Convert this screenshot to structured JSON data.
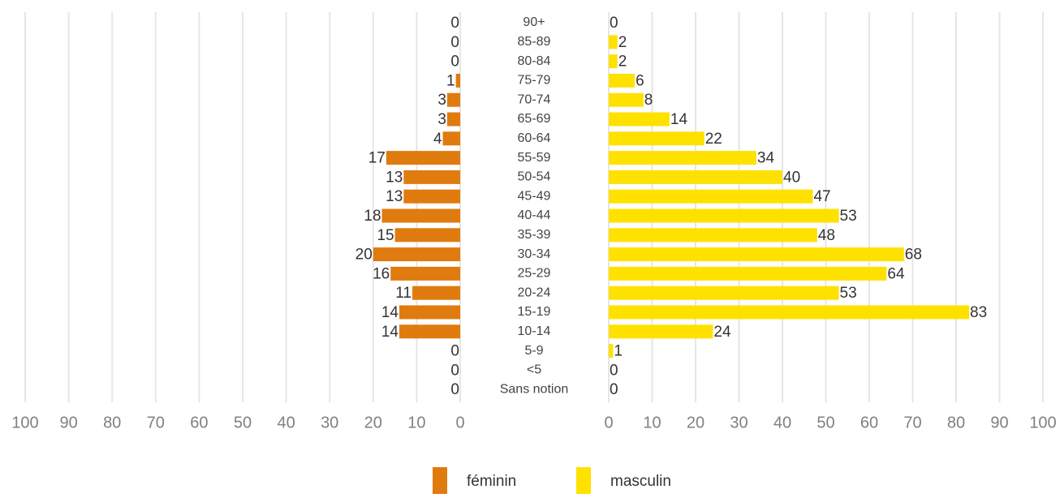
{
  "chart_data": {
    "type": "pyramid",
    "categories": [
      "90+",
      "85-89",
      "80-84",
      "75-79",
      "70-74",
      "65-69",
      "60-64",
      "55-59",
      "50-54",
      "45-49",
      "40-44",
      "35-39",
      "30-34",
      "25-29",
      "20-24",
      "15-19",
      "10-14",
      "5-9",
      "<5",
      "Sans notion"
    ],
    "series": [
      {
        "name": "féminin",
        "color": "#e07b10",
        "values": [
          0,
          0,
          0,
          1,
          3,
          3,
          4,
          17,
          13,
          13,
          18,
          15,
          20,
          16,
          11,
          14,
          14,
          0,
          0,
          0
        ]
      },
      {
        "name": "masculin",
        "color": "#ffe100",
        "values": [
          0,
          2,
          2,
          6,
          8,
          14,
          22,
          34,
          40,
          47,
          53,
          48,
          68,
          64,
          53,
          83,
          24,
          1,
          0,
          0
        ]
      }
    ],
    "xlim": [
      0,
      100
    ],
    "xticks": [
      0,
      10,
      20,
      30,
      40,
      50,
      60,
      70,
      80,
      90,
      100
    ],
    "grid": true,
    "legend": "bottom"
  }
}
